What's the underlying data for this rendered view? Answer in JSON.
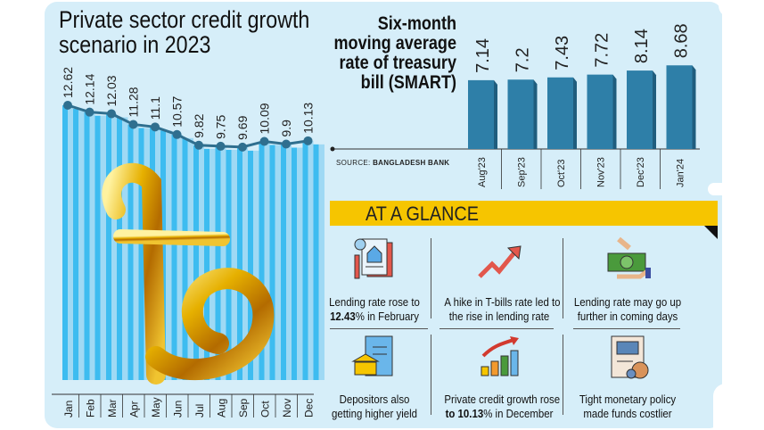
{
  "colors": {
    "background": "#d6eef9",
    "bar_light_stripe": "#3dbcf0",
    "bar_pale_stripe": "#9fd9f4",
    "line": "#2f6f8f",
    "smart_bar": "#2e7fa8",
    "glance_bar": "#f6c500"
  },
  "chart_data": [
    {
      "type": "line",
      "title": "Private sector credit growth scenario in 2023",
      "categories": [
        "Jan",
        "Feb",
        "Mar",
        "Apr",
        "May",
        "Jun",
        "Jul",
        "Aug",
        "Sep",
        "Oct",
        "Nov",
        "Dec"
      ],
      "values": [
        12.62,
        12.14,
        12.03,
        11.28,
        11.1,
        10.57,
        9.82,
        9.75,
        9.69,
        10.09,
        9.9,
        10.13
      ],
      "data_labels": [
        "12.62",
        "12.14",
        "12.03",
        "11.28",
        "11.1",
        "10.57",
        "9.82",
        "9.75",
        "9.69",
        "10.09",
        "9.9",
        "10.13"
      ],
      "decoration": "taka-symbol"
    },
    {
      "type": "bar",
      "title": "Six-month moving average rate of treasury bill (SMART)",
      "categories": [
        "Aug'23",
        "Sep'23",
        "Oct'23",
        "Nov'23",
        "Dec'23",
        "Jan'24"
      ],
      "values": [
        7.14,
        7.2,
        7.43,
        7.72,
        8.14,
        8.68
      ],
      "data_labels": [
        "7.14",
        "7.2",
        "7.43",
        "7.72",
        "8.14",
        "8.68"
      ],
      "ylim": [
        0,
        9
      ]
    }
  ],
  "source": {
    "label": "SOURCE:",
    "name": "BANGLADESH BANK"
  },
  "glance": {
    "title": "AT A GLANCE",
    "items": [
      {
        "icon": "loan-document-icon",
        "line1": "Lending rate rose to",
        "bold": "12.43",
        "line2": "% in February"
      },
      {
        "icon": "rising-arrow-icon",
        "line1": "A hike in T-bills rate led to",
        "bold": "",
        "line2": "the rise in lending rate"
      },
      {
        "icon": "money-hand-icon",
        "line1": "Lending rate may go up",
        "bold": "",
        "line2": "further in coming days"
      },
      {
        "icon": "bank-document-icon",
        "line1": "Depositors also",
        "bold": "",
        "line2": "getting higher yield"
      },
      {
        "icon": "growth-chart-icon",
        "line1": "Private credit growth rose",
        "bold": "to 10.13",
        "line2": "% in December"
      },
      {
        "icon": "monetary-policy-icon",
        "line1": "Tight monetary policy",
        "bold": "",
        "line2": "made funds costlier"
      }
    ]
  }
}
